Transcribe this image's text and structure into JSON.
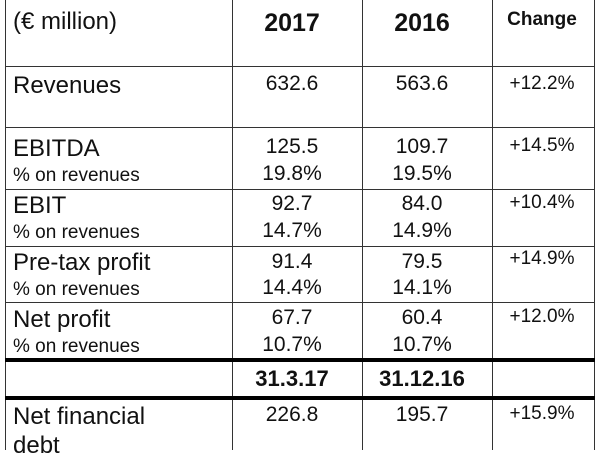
{
  "header": {
    "unit_label": "(€ million)",
    "year_current": "2017",
    "year_prior": "2016",
    "change_label": "Change"
  },
  "rows": [
    {
      "label": "Revenues",
      "current": "632.6",
      "prior": "563.6",
      "change": "+12.2%"
    },
    {
      "label": "EBITDA",
      "sub_label": "% on revenues",
      "current": "125.5",
      "current_pct": "19.8%",
      "prior": "109.7",
      "prior_pct": "19.5%",
      "change": "+14.5%"
    },
    {
      "label": "EBIT",
      "sub_label": "% on revenues",
      "current": "92.7",
      "current_pct": "14.7%",
      "prior": "84.0",
      "prior_pct": "14.9%",
      "change": "+10.4%"
    },
    {
      "label": "Pre-tax profit",
      "sub_label": "% on revenues",
      "current": "91.4",
      "current_pct": "14.4%",
      "prior": "79.5",
      "prior_pct": "14.1%",
      "change": "+14.9%"
    },
    {
      "label": "Net profit",
      "sub_label": "% on revenues",
      "current": "67.7",
      "current_pct": "10.7%",
      "prior": "60.4",
      "prior_pct": "10.7%",
      "change": "+12.0%"
    }
  ],
  "balance_header": {
    "date_current": "31.3.17",
    "date_prior": "31.12.16"
  },
  "balance_rows": [
    {
      "label_line1": "Net financial",
      "label_line2": "debt",
      "current": "226.8",
      "prior": "195.7",
      "change": "+15.9%"
    }
  ]
}
